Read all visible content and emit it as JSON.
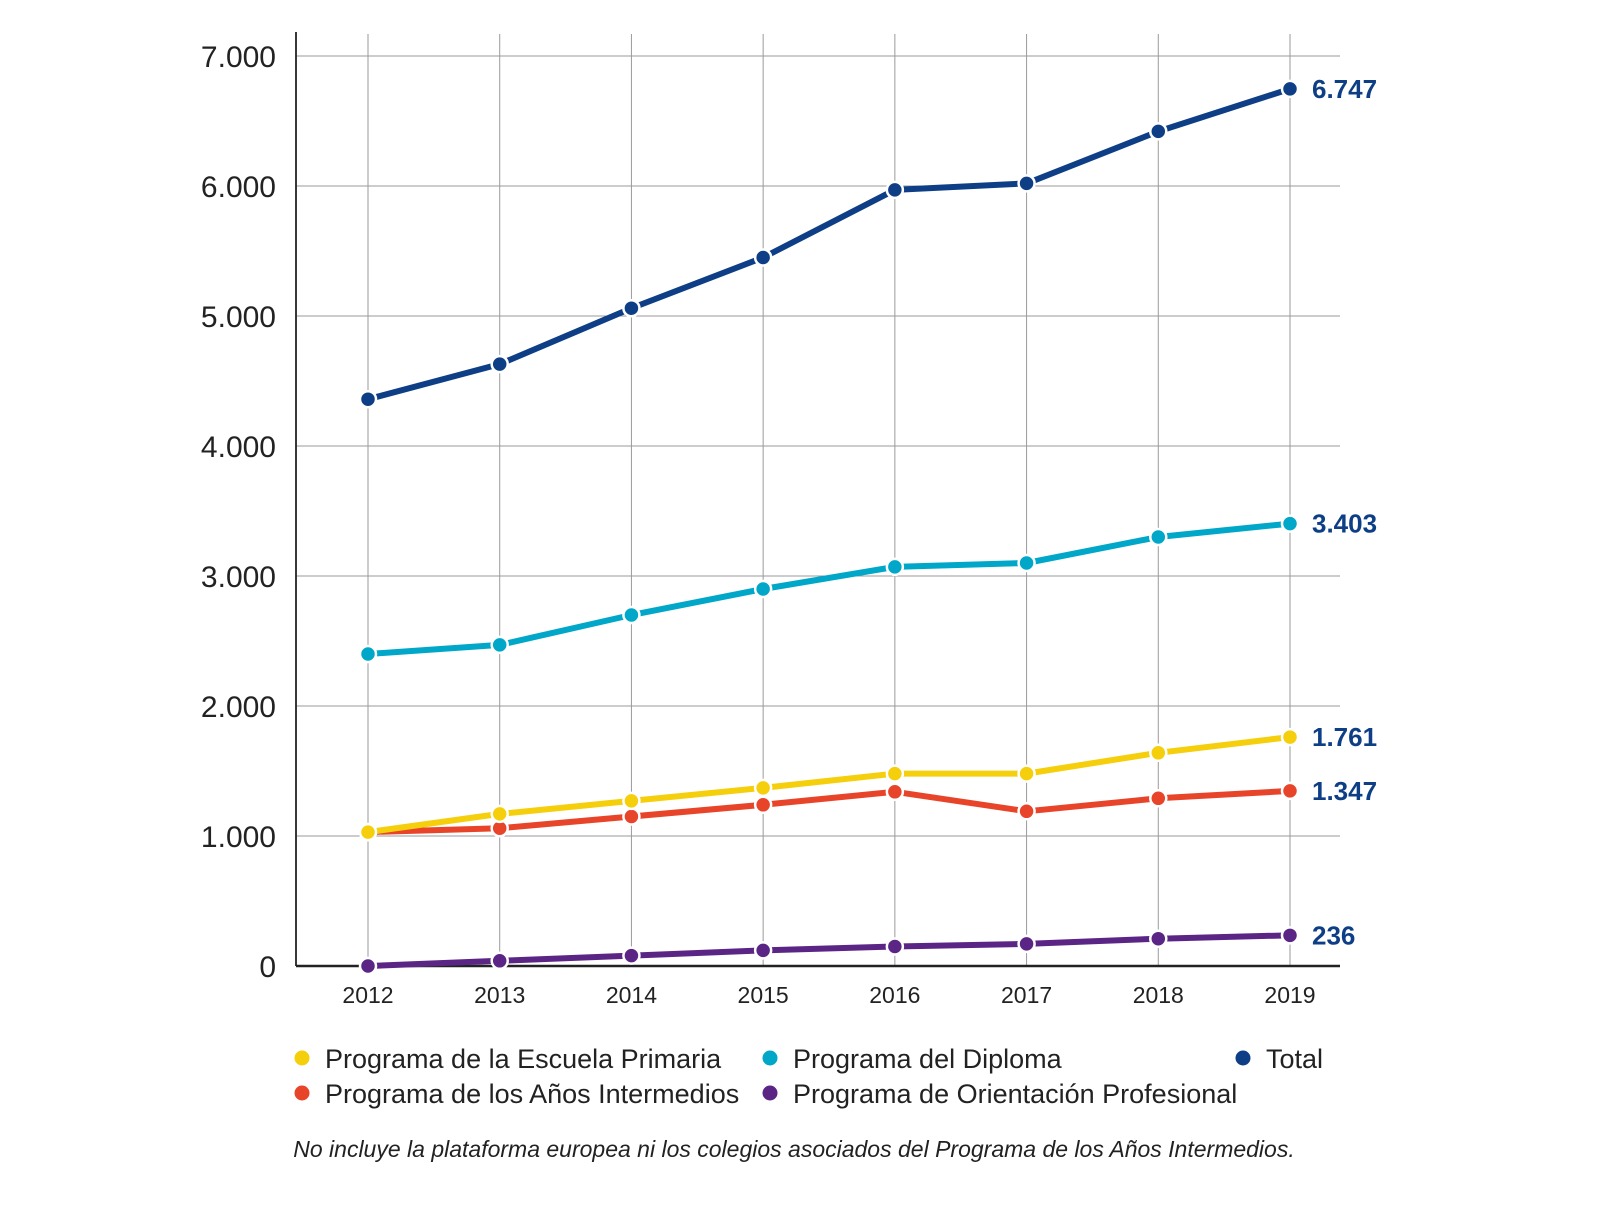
{
  "chart_data": {
    "type": "line",
    "title": "",
    "xlabel": "",
    "ylabel": "",
    "x": [
      "2012",
      "2013",
      "2014",
      "2015",
      "2016",
      "2017",
      "2018",
      "2019"
    ],
    "ylim": [
      0,
      7000
    ],
    "y_ticks": [
      0,
      1000,
      2000,
      3000,
      4000,
      5000,
      6000,
      7000
    ],
    "y_tick_labels": [
      "0",
      "1.000",
      "2.000",
      "3.000",
      "4.000",
      "5.000",
      "6.000",
      "7.000"
    ],
    "grid": true,
    "series": [
      {
        "name": "Total",
        "color": "#0e3f86",
        "values": [
          4360,
          4630,
          5060,
          5450,
          5970,
          6020,
          6420,
          6747
        ],
        "end_label": "6.747"
      },
      {
        "name": "Programa del Diploma",
        "color": "#00a7c8",
        "values": [
          2400,
          2470,
          2700,
          2900,
          3070,
          3100,
          3300,
          3403
        ],
        "end_label": "3.403"
      },
      {
        "name": "Programa de la Escuela Primaria",
        "color": "#f5cf0c",
        "values": [
          1030,
          1170,
          1270,
          1370,
          1480,
          1480,
          1640,
          1761
        ],
        "end_label": "1.761"
      },
      {
        "name": "Programa de los Años Intermedios",
        "color": "#e8442a",
        "values": [
          1030,
          1060,
          1150,
          1240,
          1340,
          1190,
          1290,
          1347
        ],
        "end_label": "1.347"
      },
      {
        "name": "Programa de Orientación Profesional",
        "color": "#5b2586",
        "values": [
          0,
          40,
          80,
          120,
          150,
          170,
          210,
          236
        ],
        "end_label": "236"
      }
    ],
    "legend": [
      {
        "label": "Programa de la Escuela Primaria",
        "color": "#f5cf0c"
      },
      {
        "label": "Programa del Diploma",
        "color": "#00a7c8"
      },
      {
        "label": "Total",
        "color": "#0e3f86"
      },
      {
        "label": "Programa de los Años Intermedios",
        "color": "#e8442a"
      },
      {
        "label": "Programa de Orientación Profesional",
        "color": "#5b2586"
      }
    ],
    "legend_placement": "bottom",
    "note": "No incluye la plataforma europea ni los colegios asociados del Programa de los Años Intermedios."
  }
}
